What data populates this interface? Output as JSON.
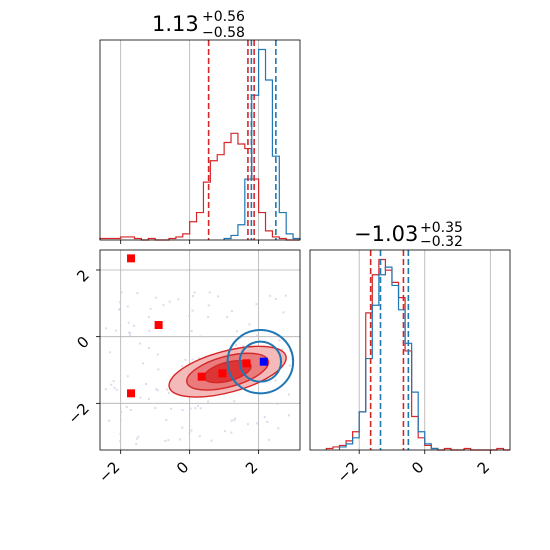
{
  "colors": {
    "red": "#d62728",
    "blue": "#1f77b4",
    "red_fill_outer": "#f4b9b9",
    "red_fill_mid": "#ea7b7c",
    "red_fill_inner": "#dd3436",
    "marker_red": "#ff0000",
    "marker_blue": "#0000ff",
    "grid": "#b0b0b0",
    "scatter_points": "#d9c6e6"
  },
  "chart_data": [
    {
      "type": "histogram",
      "panel": "top-left",
      "title": "1.13",
      "title_sup": "+0.56",
      "title_sub": "−0.58",
      "xlim": [
        -2.6,
        3.2
      ],
      "grid": true,
      "quantile_lines": {
        "red": [
          0.55,
          1.69,
          1.87
        ],
        "blue": [
          1.79,
          2.5
        ]
      },
      "series": [
        {
          "color": "red",
          "bin_edges": [
            -2.6,
            -2.4,
            -2.2,
            -2.0,
            -1.8,
            -1.6,
            -1.4,
            -1.2,
            -1.0,
            -0.8,
            -0.6,
            -0.4,
            -0.2,
            0.0,
            0.2,
            0.4,
            0.6,
            0.8,
            1.0,
            1.2,
            1.4,
            1.6,
            1.8,
            2.0,
            2.2,
            2.4,
            2.6,
            2.8,
            3.0,
            3.2
          ],
          "counts": [
            1,
            1,
            1,
            2,
            2,
            1,
            0,
            1,
            0,
            0,
            1,
            2,
            4,
            12,
            18,
            38,
            52,
            56,
            64,
            70,
            63,
            60,
            40,
            18,
            6,
            2,
            1,
            0,
            0
          ]
        },
        {
          "color": "blue",
          "bin_edges": [
            1.0,
            1.2,
            1.4,
            1.6,
            1.8,
            2.0,
            2.2,
            2.4,
            2.6,
            2.8,
            3.0,
            3.2
          ],
          "counts": [
            1,
            3,
            10,
            40,
            95,
            125,
            105,
            55,
            18,
            4,
            1
          ]
        }
      ]
    },
    {
      "type": "histogram",
      "panel": "bottom-right",
      "title": "−1.03",
      "title_sup": "+0.35",
      "title_sub": "−0.32",
      "xlim": [
        -3.5,
        2.6
      ],
      "xticks": [
        -2,
        0,
        2
      ],
      "xtick_labels": [
        "−2",
        "0",
        "2"
      ],
      "grid": true,
      "quantile_lines": {
        "red": [
          -1.65,
          -0.65
        ],
        "blue": [
          -1.35,
          -0.5
        ]
      },
      "series": [
        {
          "color": "red",
          "bin_edges": [
            -3.0,
            -2.8,
            -2.6,
            -2.4,
            -2.2,
            -2.0,
            -1.8,
            -1.6,
            -1.4,
            -1.2,
            -1.0,
            -0.8,
            -0.6,
            -0.4,
            -0.2,
            0.0,
            0.2,
            0.4,
            0.6,
            0.8,
            1.0,
            1.2,
            1.4,
            1.6,
            1.8,
            2.0,
            2.2,
            2.4,
            2.6
          ],
          "counts": [
            1,
            2,
            3,
            6,
            12,
            25,
            90,
            115,
            125,
            118,
            110,
            100,
            65,
            22,
            8,
            3,
            1,
            0,
            1,
            0,
            0,
            1,
            0,
            0,
            0,
            0,
            1,
            0
          ]
        },
        {
          "color": "blue",
          "bin_edges": [
            -2.6,
            -2.4,
            -2.2,
            -2.0,
            -1.8,
            -1.6,
            -1.4,
            -1.2,
            -1.0,
            -0.8,
            -0.6,
            -0.4,
            -0.2,
            0.0,
            0.2,
            0.4
          ],
          "counts": [
            2,
            4,
            8,
            25,
            60,
            95,
            115,
            120,
            108,
            92,
            70,
            38,
            12,
            4,
            1
          ]
        }
      ]
    },
    {
      "type": "contour",
      "panel": "bottom-left",
      "xlim": [
        -2.6,
        3.2
      ],
      "ylim": [
        -3.4,
        2.6
      ],
      "xticks": [
        -2,
        0,
        2
      ],
      "xtick_labels": [
        "−2",
        "0",
        "2"
      ],
      "yticks": [
        -2,
        0,
        2
      ],
      "ytick_labels": [
        "−2",
        "0",
        "2"
      ],
      "grid": true,
      "series": [
        {
          "color": "red",
          "filled": true,
          "center": [
            1.1,
            -1.05
          ],
          "levels": [
            {
              "rx": 1.75,
              "ry": 0.62,
              "angle": 15
            },
            {
              "rx": 1.22,
              "ry": 0.46,
              "angle": 15
            },
            {
              "rx": 0.7,
              "ry": 0.28,
              "angle": 15
            }
          ]
        },
        {
          "color": "blue",
          "filled": false,
          "center": [
            2.05,
            -0.75
          ],
          "levels": [
            {
              "rx": 0.95,
              "ry": 0.95,
              "angle": 0
            },
            {
              "rx": 0.6,
              "ry": 0.6,
              "angle": 0
            }
          ]
        }
      ],
      "markers_red": [
        [
          -1.7,
          2.35
        ],
        [
          -0.9,
          0.35
        ],
        [
          -1.7,
          -1.7
        ],
        [
          0.35,
          -1.2
        ],
        [
          0.95,
          -1.1
        ],
        [
          1.65,
          -0.8
        ]
      ],
      "markers_blue": [
        [
          2.15,
          -0.75
        ]
      ]
    }
  ]
}
